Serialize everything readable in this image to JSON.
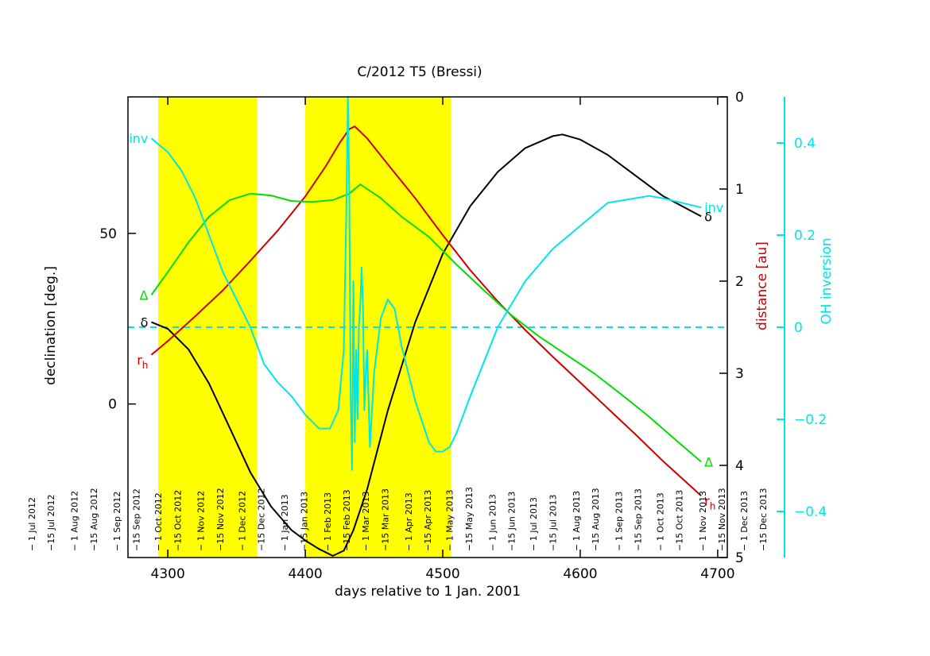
{
  "chart_data": {
    "type": "line",
    "title": "C/2012 T5 (Bressi)",
    "xlabel": "days relative to 1 Jan. 2001",
    "ylabel_left": "declination [deg.]",
    "ylabel_right1": "distance [au]",
    "ylabel_right2": "OH inversion",
    "xlim": [
      4271,
      4707
    ],
    "ylim_left": [
      -45,
      90
    ],
    "ylim_right1_inverted": [
      0,
      5
    ],
    "ylim_right2": [
      -0.5,
      0.5
    ],
    "x_ticks": [
      "4300",
      "4400",
      "4500",
      "4600",
      "4700"
    ],
    "y_left_ticks": [
      "0",
      "50"
    ],
    "y_right1_ticks": [
      "0",
      "1",
      "2",
      "3",
      "4",
      "5"
    ],
    "y_right2_ticks": [
      "0.4",
      "0.2",
      "0",
      "−0.2",
      "−0.4"
    ],
    "colors": {
      "declination": "#000000",
      "rh": "#cc0000",
      "delta": "#00dd00",
      "inversion": "#00e5e5",
      "highlight": "#ffff00"
    },
    "highlight_bands": [
      [
        4293,
        4365
      ],
      [
        4400,
        4506
      ]
    ],
    "date_labels": [
      {
        "text": "− 1 Jul 2012",
        "x": 4201
      },
      {
        "text": "−15 Jul 2012",
        "x": 4215
      },
      {
        "text": "− 1 Aug 2012",
        "x": 4232
      },
      {
        "text": "−15 Aug 2012",
        "x": 4246
      },
      {
        "text": "− 1 Sep 2012",
        "x": 4263
      },
      {
        "text": "−15 Sep 2012",
        "x": 4277
      },
      {
        "text": "− 1 Oct 2012",
        "x": 4293
      },
      {
        "text": "−15 Oct 2012",
        "x": 4307
      },
      {
        "text": "− 1 Nov 2012",
        "x": 4324
      },
      {
        "text": "−15 Nov 2012",
        "x": 4338
      },
      {
        "text": "− 1 Dec 2012",
        "x": 4354
      },
      {
        "text": "−15 Dec 2012",
        "x": 4368
      },
      {
        "text": "− 1 Jan 2013",
        "x": 4385
      },
      {
        "text": "−15 Jan 2013",
        "x": 4399
      },
      {
        "text": "− 1 Feb 2013",
        "x": 4416
      },
      {
        "text": "−15 Feb 2013",
        "x": 4430
      },
      {
        "text": "− 1 Mar 2013",
        "x": 4444
      },
      {
        "text": "−15 Mar 2013",
        "x": 4458
      },
      {
        "text": "− 1 Apr 2013",
        "x": 4475
      },
      {
        "text": "−15 Apr 2013",
        "x": 4489
      },
      {
        "text": "− 1 May 2013",
        "x": 4505
      },
      {
        "text": "−15 May 2013",
        "x": 4519
      },
      {
        "text": "− 1 Jun 2013",
        "x": 4536
      },
      {
        "text": "−15 Jun 2013",
        "x": 4550
      },
      {
        "text": "− 1 Jul 2013",
        "x": 4566
      },
      {
        "text": "−15 Jul 2013",
        "x": 4580
      },
      {
        "text": "− 1 Aug 2013",
        "x": 4597
      },
      {
        "text": "−15 Aug 2013",
        "x": 4611
      },
      {
        "text": "− 1 Sep 2013",
        "x": 4628
      },
      {
        "text": "−15 Sep 2013",
        "x": 4642
      },
      {
        "text": "− 1 Oct 2013",
        "x": 4658
      },
      {
        "text": "−15 Oct 2013",
        "x": 4672
      },
      {
        "text": "− 1 Nov 2013",
        "x": 4689
      },
      {
        "text": "−15 Nov 2013",
        "x": 4703
      },
      {
        "text": "− 1 Dec 2013",
        "x": 4719
      },
      {
        "text": "−15 Dec 2013",
        "x": 4733
      }
    ],
    "series": [
      {
        "name": "δ",
        "axis": "left",
        "x": [
          4288,
          4300,
          4315,
          4330,
          4345,
          4360,
          4375,
          4390,
          4400,
          4410,
          4420,
          4428,
          4435,
          4445,
          4460,
          4480,
          4500,
          4520,
          4540,
          4560,
          4580,
          4587,
          4600,
          4620,
          4640,
          4660,
          4688
        ],
        "y": [
          24,
          22,
          16,
          6,
          -7,
          -20,
          -30,
          -37,
          -40,
          -42.5,
          -44.5,
          -43,
          -37,
          -25,
          -2,
          24,
          44,
          58,
          68,
          75,
          78.5,
          79,
          77.5,
          73,
          67,
          61,
          55
        ]
      },
      {
        "name": "r_h",
        "axis": "right1",
        "x": [
          4288,
          4300,
          4320,
          4340,
          4360,
          4380,
          4400,
          4415,
          4425,
          4432,
          4436,
          4445,
          4460,
          4480,
          4500,
          4520,
          4540,
          4560,
          4580,
          4600,
          4620,
          4640,
          4660,
          4688
        ],
        "y": [
          2.8,
          2.65,
          2.38,
          2.1,
          1.78,
          1.45,
          1.08,
          0.75,
          0.5,
          0.35,
          0.32,
          0.45,
          0.73,
          1.1,
          1.5,
          1.88,
          2.22,
          2.53,
          2.82,
          3.1,
          3.38,
          3.66,
          3.95,
          4.33
        ]
      },
      {
        "name": "Δ",
        "axis": "right1",
        "x": [
          4288,
          4300,
          4315,
          4330,
          4345,
          4360,
          4375,
          4390,
          4405,
          4420,
          4432,
          4440,
          4455,
          4470,
          4490,
          4510,
          4530,
          4550,
          4570,
          4590,
          4610,
          4630,
          4650,
          4670,
          4688
        ],
        "y": [
          2.15,
          1.9,
          1.58,
          1.3,
          1.12,
          1.05,
          1.07,
          1.13,
          1.14,
          1.12,
          1.05,
          0.95,
          1.1,
          1.3,
          1.52,
          1.82,
          2.1,
          2.37,
          2.6,
          2.8,
          3.0,
          3.23,
          3.47,
          3.73,
          3.96
        ]
      },
      {
        "name": "inv",
        "axis": "right2",
        "x": [
          4288,
          4300,
          4310,
          4320,
          4330,
          4340,
          4350,
          4360,
          4370,
          4380,
          4390,
          4400,
          4410,
          4418,
          4424,
          4428,
          4430,
          4431,
          4432,
          4433,
          4434,
          4435,
          4436,
          4437,
          4438,
          4439,
          4440,
          4441,
          4442,
          4443,
          4444,
          4445,
          4447,
          4450,
          4455,
          4460,
          4465,
          4470,
          4480,
          4490,
          4495,
          4500,
          4505,
          4510,
          4520,
          4540,
          4560,
          4580,
          4600,
          4620,
          4640,
          4650,
          4660,
          4688
        ],
        "y": [
          0.41,
          0.38,
          0.34,
          0.28,
          0.2,
          0.12,
          0.06,
          0.0,
          -0.08,
          -0.12,
          -0.15,
          -0.19,
          -0.22,
          -0.22,
          -0.18,
          -0.05,
          0.28,
          0.5,
          0.3,
          -0.15,
          -0.31,
          0.1,
          -0.25,
          -0.05,
          -0.2,
          0.0,
          0.05,
          0.13,
          0.04,
          -0.18,
          -0.1,
          -0.05,
          -0.26,
          -0.1,
          0.02,
          0.06,
          0.04,
          -0.04,
          -0.16,
          -0.25,
          -0.27,
          -0.27,
          -0.26,
          -0.23,
          -0.15,
          0.0,
          0.1,
          0.17,
          0.22,
          0.27,
          0.28,
          0.285,
          0.28,
          0.26
        ]
      }
    ],
    "zero_line": {
      "axis": "right2",
      "y": 0,
      "style": "dashed"
    },
    "end_labels": [
      {
        "text": "inv",
        "series": "inv",
        "side": "left"
      },
      {
        "text": "δ",
        "series": "δ",
        "side": "left"
      },
      {
        "text": "Δ",
        "series": "Δ",
        "side": "left"
      },
      {
        "text": "r_h",
        "series": "r_h",
        "side": "left"
      },
      {
        "text": "inv",
        "series": "inv",
        "side": "right"
      },
      {
        "text": "δ",
        "series": "δ",
        "side": "right"
      },
      {
        "text": "Δ",
        "series": "Δ",
        "side": "right"
      },
      {
        "text": "r_h",
        "series": "r_h",
        "side": "right"
      }
    ],
    "grid": false,
    "legend": "none"
  }
}
